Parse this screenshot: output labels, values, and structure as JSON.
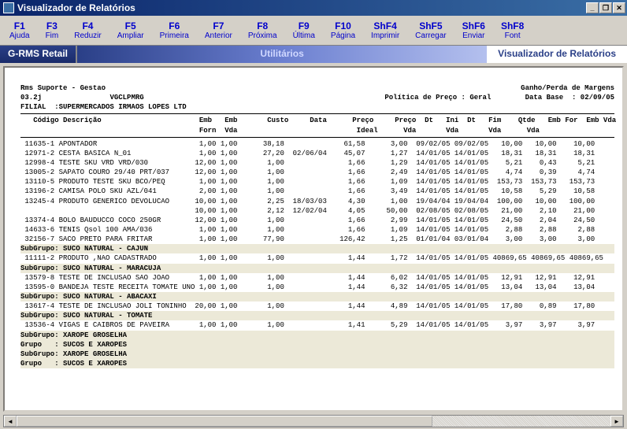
{
  "window": {
    "title": "Visualizador de Relatórios"
  },
  "win_buttons": {
    "min": "_",
    "max": "❐",
    "close": "✕"
  },
  "toolbar": [
    {
      "key": "F1",
      "label": "Ajuda"
    },
    {
      "key": "F3",
      "label": "Fim"
    },
    {
      "key": "F4",
      "label": "Reduzir"
    },
    {
      "key": "F5",
      "label": "Ampliar"
    },
    {
      "key": "F6",
      "label": "Primeira"
    },
    {
      "key": "F7",
      "label": "Anterior"
    },
    {
      "key": "F8",
      "label": "Próxima"
    },
    {
      "key": "F9",
      "label": "Última"
    },
    {
      "key": "F10",
      "label": "Página"
    },
    {
      "key": "ShF4",
      "label": "Imprimir"
    },
    {
      "key": "ShF5",
      "label": "Carregar"
    },
    {
      "key": "ShF6",
      "label": "Enviar"
    },
    {
      "key": "ShF8",
      "label": "Font"
    }
  ],
  "nav": {
    "seg1": "G-RMS Retail",
    "seg2": "Utilitários",
    "seg3": "Visualizador de Relatórios"
  },
  "report": {
    "company": "Rms Suporte - Gestao",
    "title_right": "Ganho/Perda de Margens",
    "version": "03.2j",
    "program": "VGCLPMRG",
    "policy": "Política de Preço : Geral",
    "database": "Data Base  : 02/09/05",
    "filial": "FILIAL  :SUPERMERCADOS IRMAOS LOPES LTD",
    "header": "   Código Descrição                       Emb   Emb       Custo     Data      Preço     Preço  Dt   Ini  Dt   Fim    Qtde   Emb For  Emb Vda",
    "header2": "                                          Forn  Vda                            Ideal      Vda       Vda       Vda      Vda",
    "rows": [
      " 11635-1 APONTADOR                        1,00 1,00      38,18              61,58      3,00  09/02/05 09/02/05   10,00   10,00    10,00",
      " 12971-2 CESTA BASICA N_01                1,00 1,00      27,20  02/06/04    45,07      1,27  14/01/05 14/01/05   18,31   18,31    18,31",
      " 12998-4 TESTE SKU VRD VRD/030           12,00 1,00       1,00               1,66      1,29  14/01/05 14/01/05    5,21    0,43     5,21",
      " 13005-2 SAPATO COURO 29/40 PRT/037      12,00 1,00       1,00               1,66      2,49  14/01/05 14/01/05    4,74    0,39     4,74",
      " 13110-5 PRODUTO TESTE SKU BCO/PEQ        1,00 1,00       1,00               1,66      1,09  14/01/05 14/01/05  153,73  153,73   153,73",
      " 13196-2 CAMISA POLO SKU AZL/041          2,00 1,00       1,00               1,66      3,49  14/01/05 14/01/05   10,58    5,29    10,58",
      " 13245-4 PRODUTO GENERICO DEVOLUCAO      10,00 1,00       2,25  18/03/03     4,30      1,00  19/04/04 19/04/04  100,00   10,00   100,00",
      "                                         10,00 1,00       2,12  12/02/04     4,05     50,00  02/08/05 02/08/05   21,00    2,10    21,00",
      " 13374-4 BOLO BAUDUCCO COCO 250GR        12,00 1,00       1,00               1,66      2,99  14/01/05 14/01/05   24,50    2,04    24,50",
      " 14633-6 TENIS Qsol 100 AMA/036           1,00 1,00       1,00               1,66      1,09  14/01/05 14/01/05    2,88    2,88     2,88",
      " 32156-7 SACO PRETO PARA FRITAR           1,00 1,00      77,90             126,42      1,25  01/01/04 03/01/04    3,00    3,00     3,00"
    ],
    "sub1": "SubGrupo: SUCO NATURAL - CAJUN",
    "rows2": [
      " 11111-2 PRODUTO ,NAO CADASTRADO          1,00 1,00       1,00               1,44      1,72  14/01/05 14/01/05 40869,65 40869,65 40869,65"
    ],
    "sub2": "SubGrupo: SUCO NATURAL - MARACUJA",
    "rows3": [
      " 13579-8 TESTE DE INCLUSAO SAO JOAO       1,00 1,00       1,00               1,44      6,02  14/01/05 14/01/05   12,91   12,91    12,91",
      " 13595-0 BANDEJA TESTE RECEITA TOMATE UNO 1,00 1,00       1,00               1,44      6,32  14/01/05 14/01/05   13,04   13,04    13,04"
    ],
    "sub3": "SubGrupo: SUCO NATURAL - ABACAXI",
    "rows4": [
      " 13617-4 TESTE DE INCLUSAO JOLI TONINHO  20,00 1,00       1,00               1,44      4,89  14/01/05 14/01/05   17,80    0,89    17,80"
    ],
    "sub4": "SubGrupo: SUCO NATURAL - TOMATE",
    "rows5": [
      " 13536-4 VIGAS E CAIBROS DE PAVEIRA       1,00 1,00       1,00               1,41      5,29  14/01/05 14/01/05    3,97    3,97     3,97"
    ],
    "sub5": "SubGrupo: XAROPE GROSELHA",
    "grp1": "Grupo   : SUCOS E XAROPES",
    "sub6": "SubGrupo: XAROPE GROSELHA",
    "grp2": "Grupo   : SUCOS E XAROPES"
  },
  "scroll": {
    "left": "◄",
    "right": "►"
  }
}
